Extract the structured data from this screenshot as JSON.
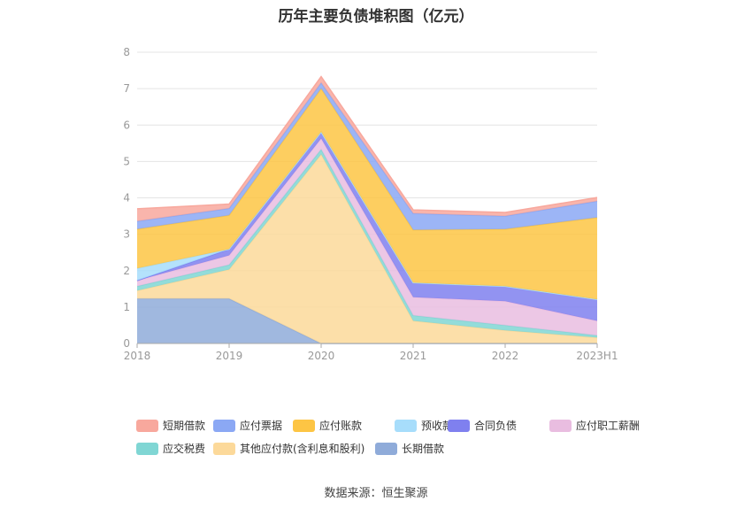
{
  "chart_data": {
    "type": "area",
    "title": "历年主要负债堆积图（亿元）",
    "source": "数据来源：恒生聚源",
    "x": [
      "2018",
      "2019",
      "2020",
      "2021",
      "2022",
      "2023H1"
    ],
    "ylim": [
      0,
      8
    ],
    "yticks": [
      0,
      1,
      2,
      3,
      4,
      5,
      6,
      7,
      8
    ],
    "stacked": true,
    "grid": true,
    "legend_position": "bottom",
    "series": [
      {
        "name": "长期借款",
        "color": "#8fabd9",
        "values": [
          1.23,
          1.23,
          0.0,
          0.0,
          0.0,
          0.0
        ]
      },
      {
        "name": "其他应付款(含利息和股利)",
        "color": "#fcd99a",
        "values": [
          0.22,
          0.8,
          5.19,
          0.62,
          0.36,
          0.16
        ]
      },
      {
        "name": "应交税费",
        "color": "#80d6d4",
        "values": [
          0.12,
          0.13,
          0.14,
          0.15,
          0.14,
          0.06
        ]
      },
      {
        "name": "应付职工薪酬",
        "color": "#e9bde0",
        "values": [
          0.16,
          0.26,
          0.3,
          0.5,
          0.66,
          0.4
        ]
      },
      {
        "name": "合同负债",
        "color": "#7f80ef",
        "values": [
          0.0,
          0.17,
          0.18,
          0.4,
          0.41,
          0.59
        ]
      },
      {
        "name": "预收款项",
        "color": "#a7ddfb",
        "values": [
          0.33,
          0.0,
          0.0,
          0.0,
          0.0,
          0.0
        ]
      },
      {
        "name": "应付账款",
        "color": "#fdc544",
        "values": [
          1.08,
          0.93,
          1.19,
          1.45,
          1.57,
          2.25
        ]
      },
      {
        "name": "应付票据",
        "color": "#8ba8f4",
        "values": [
          0.22,
          0.19,
          0.16,
          0.45,
          0.36,
          0.45
        ]
      },
      {
        "name": "短期借款",
        "color": "#f8a89d",
        "values": [
          0.34,
          0.12,
          0.17,
          0.1,
          0.1,
          0.1
        ]
      }
    ],
    "legend_order": [
      "短期借款",
      "应付票据",
      "应付账款",
      "预收款项",
      "合同负债",
      "应付职工薪酬",
      "应交税费",
      "其他应付款(含利息和股利)",
      "长期借款"
    ]
  }
}
